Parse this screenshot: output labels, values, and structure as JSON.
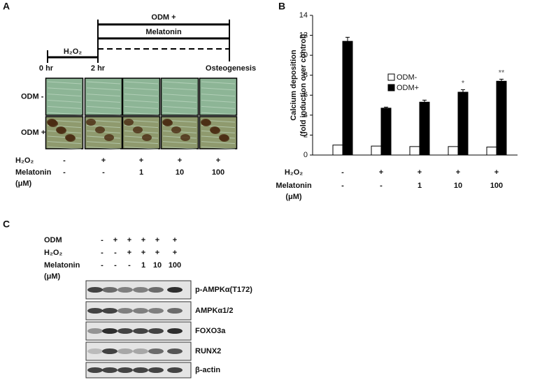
{
  "panel_a": {
    "letter": "A",
    "timeline": {
      "odm": "ODM +",
      "melatonin": "Melatonin",
      "h2o2": "H₂O₂",
      "t0": "0 hr",
      "t2": "2 hr",
      "end": "Osteogenesis"
    },
    "row_labels": [
      "ODM -",
      "ODM +"
    ],
    "conditions": [
      {
        "label": "H₂O₂",
        "values": [
          "-",
          "+",
          "+",
          "+",
          "+"
        ]
      },
      {
        "label": "Melatonin",
        "unit": "(μM)",
        "values": [
          "-",
          "-",
          "1",
          "10",
          "100"
        ]
      }
    ]
  },
  "chart_data": {
    "type": "bar",
    "letter": "B",
    "ylabel": [
      "Calcium deposition",
      "(fold induction over control)"
    ],
    "ylim": [
      0,
      14
    ],
    "yticks": [
      0,
      2,
      4,
      6,
      8,
      10,
      12,
      14
    ],
    "conditions": [
      {
        "label": "H₂O₂",
        "values": [
          "-",
          "+",
          "+",
          "+",
          "+"
        ]
      },
      {
        "label": "Melatonin",
        "unit": "(μM)",
        "values": [
          "-",
          "-",
          "1",
          "10",
          "100"
        ]
      }
    ],
    "series": [
      {
        "name": "ODM-",
        "color": "#ffffff",
        "values": [
          1.0,
          0.9,
          0.85,
          0.85,
          0.8
        ]
      },
      {
        "name": "ODM+",
        "color": "#000000",
        "values": [
          11.4,
          4.7,
          5.3,
          6.3,
          7.4
        ],
        "errors": [
          0.4,
          0.1,
          0.2,
          0.25,
          0.2
        ],
        "significance": [
          null,
          null,
          null,
          "*",
          "**"
        ]
      }
    ]
  },
  "panel_c": {
    "letter": "C",
    "conditions": [
      {
        "label": "ODM",
        "values": [
          "-",
          "+",
          "+",
          "+",
          "+",
          "+"
        ]
      },
      {
        "label": "H₂O₂",
        "values": [
          "-",
          "-",
          "+",
          "+",
          "+",
          "+"
        ]
      },
      {
        "label": "Melatonin",
        "unit": "(μM)",
        "values": [
          "-",
          "-",
          "-",
          "1",
          "10",
          "100"
        ]
      }
    ],
    "blots": [
      "p-AMPKα(T172)",
      "AMPKα1/2",
      "FOXO3a",
      "RUNX2",
      "β-actin"
    ]
  }
}
